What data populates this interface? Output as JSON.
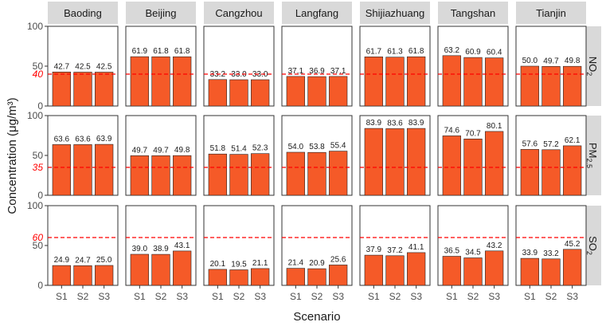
{
  "chart_data": {
    "type": "bar",
    "facet_columns": [
      "Baoding",
      "Beijing",
      "Cangzhou",
      "Langfang",
      "Shijiazhuang",
      "Tangshan",
      "Tianjin"
    ],
    "facet_rows": [
      {
        "key": "NO2",
        "label_main": "NO",
        "label_sub": "2",
        "threshold": 40,
        "threshold_label": "40"
      },
      {
        "key": "PM25",
        "label_main": "PM",
        "label_sub": "2.5",
        "threshold": 35,
        "threshold_label": "35"
      },
      {
        "key": "SO2",
        "label_main": "SO",
        "label_sub": "2",
        "threshold": 60,
        "threshold_label": "60"
      }
    ],
    "categories": [
      "S1",
      "S2",
      "S3"
    ],
    "values": {
      "NO2": [
        [
          42.7,
          42.5,
          42.5
        ],
        [
          61.9,
          61.8,
          61.8
        ],
        [
          33.2,
          33.0,
          33.0
        ],
        [
          37.1,
          36.9,
          37.1
        ],
        [
          61.7,
          61.3,
          61.8
        ],
        [
          63.2,
          60.9,
          60.4
        ],
        [
          50.0,
          49.7,
          49.8
        ]
      ],
      "PM25": [
        [
          63.6,
          63.6,
          63.9
        ],
        [
          49.7,
          49.7,
          49.8
        ],
        [
          51.8,
          51.4,
          52.3
        ],
        [
          54.0,
          53.8,
          55.4
        ],
        [
          83.9,
          83.6,
          83.9
        ],
        [
          74.6,
          70.7,
          80.1
        ],
        [
          57.6,
          57.2,
          62.1
        ]
      ],
      "SO2": [
        [
          24.9,
          24.7,
          25.0
        ],
        [
          39.0,
          38.9,
          43.1
        ],
        [
          20.1,
          19.5,
          21.1
        ],
        [
          21.4,
          20.9,
          25.6
        ],
        [
          37.9,
          37.2,
          41.1
        ],
        [
          36.5,
          34.5,
          43.2
        ],
        [
          33.9,
          33.2,
          45.2
        ]
      ]
    },
    "value_labels": {
      "NO2": [
        [
          "42.7",
          "42.5",
          "42.5"
        ],
        [
          "61.9",
          "61.8",
          "61.8"
        ],
        [
          "33.2",
          "33.0",
          "33.0"
        ],
        [
          "37.1",
          "36.9",
          "37.1"
        ],
        [
          "61.7",
          "61.3",
          "61.8"
        ],
        [
          "63.2",
          "60.9",
          "60.4"
        ],
        [
          "50.0",
          "49.7",
          "49.8"
        ]
      ],
      "PM25": [
        [
          "63.6",
          "63.6",
          "63.9"
        ],
        [
          "49.7",
          "49.7",
          "49.8"
        ],
        [
          "51.8",
          "51.4",
          "52.3"
        ],
        [
          "54.0",
          "53.8",
          "55.4"
        ],
        [
          "83.9",
          "83.6",
          "83.9"
        ],
        [
          "74.6",
          "70.7",
          "80.1"
        ],
        [
          "57.6",
          "57.2",
          "62.1"
        ]
      ],
      "SO2": [
        [
          "24.9",
          "24.7",
          "25.0"
        ],
        [
          "39.0",
          "38.9",
          "43.1"
        ],
        [
          "20.1",
          "19.5",
          "21.1"
        ],
        [
          "21.4",
          "20.9",
          "25.6"
        ],
        [
          "37.9",
          "37.2",
          "41.1"
        ],
        [
          "36.5",
          "34.5",
          "43.2"
        ],
        [
          "33.9",
          "33.2",
          "45.2"
        ]
      ]
    },
    "ylim": [
      0,
      100
    ],
    "yticks": [
      0,
      50,
      100
    ],
    "ytick_labels": [
      "0",
      "50",
      "100"
    ],
    "xlabel": "Scenario",
    "ylabel": "Concentration (μg/m³)",
    "grid": false,
    "legend": "none",
    "colors": {
      "bar": "#f55a28",
      "bar_stroke": "#222222",
      "threshold": "#ff0000",
      "strip": "#d9d9d9"
    }
  }
}
